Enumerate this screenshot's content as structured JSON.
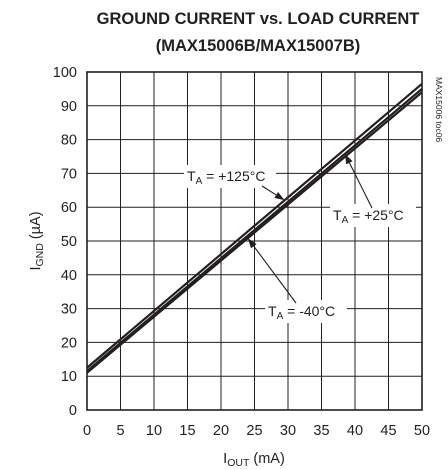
{
  "chart_data": {
    "type": "line",
    "title": "GROUND CURRENT vs. LOAD CURRENT",
    "subtitle": "(MAX15006B/MAX15007B)",
    "xlabel": {
      "main": "I",
      "sub": "OUT",
      "unit": " (mA)"
    },
    "ylabel": {
      "main": "I",
      "sub": "GND",
      "unit": " (µA)"
    },
    "xlim": [
      0,
      50
    ],
    "ylim": [
      0,
      100
    ],
    "x_ticks": [
      0,
      5,
      10,
      15,
      20,
      25,
      30,
      35,
      40,
      45,
      50
    ],
    "y_ticks": [
      0,
      10,
      20,
      30,
      40,
      50,
      60,
      70,
      80,
      90,
      100
    ],
    "grid": true,
    "side_label": "MAX15006 toc06",
    "series": [
      {
        "name": "T_A = +125°C",
        "x": [
          0,
          50
        ],
        "y": [
          12.5,
          96.5
        ]
      },
      {
        "name": "T_A = +25°C",
        "x": [
          0,
          50
        ],
        "y": [
          11.5,
          95
        ]
      },
      {
        "name": "T_A = -40°C",
        "x": [
          0,
          50
        ],
        "y": [
          11,
          94
        ]
      }
    ],
    "annotations": [
      {
        "pre": "T",
        "sub": "A",
        "post": " = +125°C",
        "series_index": 0,
        "point_x": 29.5
      },
      {
        "pre": "T",
        "sub": "A",
        "post": " = +25°C",
        "series_index": 1,
        "point_x": 38.5
      },
      {
        "pre": "T",
        "sub": "A",
        "post": " = -40°C",
        "series_index": 2,
        "point_x": 24.0
      }
    ]
  }
}
